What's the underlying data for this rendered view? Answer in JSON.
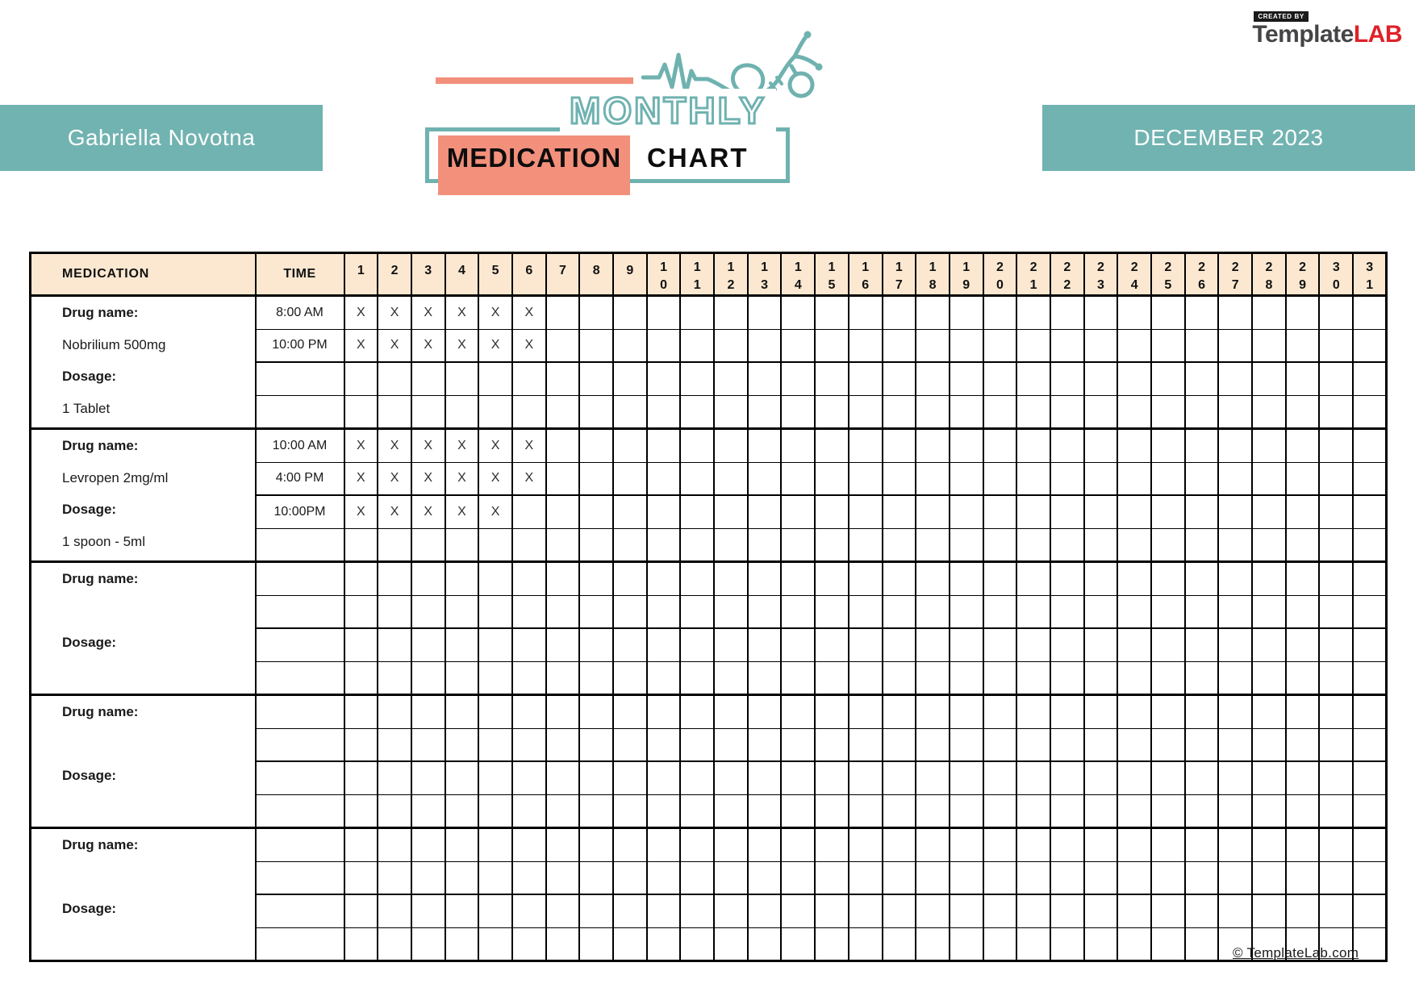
{
  "branding": {
    "created_by": "CREATED BY",
    "brand_template": "Template",
    "brand_lab": "LAB",
    "footer_link": "© TemplateLab.com"
  },
  "header": {
    "patient_name": "Gabriella Novotna",
    "month": "DECEMBER 2023",
    "title_word1": "MONTHLY",
    "title_word2": "MEDICATION",
    "title_word3": "CHART"
  },
  "colors": {
    "teal": "#71b3b1",
    "salmon": "#f2907c",
    "table_header_bg": "#fce8d1",
    "brand_red": "#e02128",
    "brand_gray": "#454547"
  },
  "table": {
    "medication_header": "MEDICATION",
    "time_header": "TIME",
    "mark_symbol": "X",
    "days": [
      1,
      2,
      3,
      4,
      5,
      6,
      7,
      8,
      9,
      10,
      11,
      12,
      13,
      14,
      15,
      16,
      17,
      18,
      19,
      20,
      21,
      22,
      23,
      24,
      25,
      26,
      27,
      28,
      29,
      30,
      31
    ],
    "blocks": [
      {
        "label_lines": [
          {
            "text": "Drug name:",
            "bold": true
          },
          {
            "text": "Nobrilium 500mg",
            "bold": false
          },
          {
            "text": "Dosage:",
            "bold": true
          },
          {
            "text": "1 Tablet",
            "bold": false
          }
        ],
        "rows": [
          {
            "time": "8:00 AM",
            "x_days": [
              1,
              2,
              3,
              4,
              5,
              6
            ]
          },
          {
            "time": "10:00 PM",
            "x_days": [
              1,
              2,
              3,
              4,
              5,
              6
            ]
          },
          {
            "time": "",
            "x_days": []
          },
          {
            "time": "",
            "x_days": []
          }
        ]
      },
      {
        "label_lines": [
          {
            "text": "Drug name:",
            "bold": true
          },
          {
            "text": "Levropen 2mg/ml",
            "bold": false
          },
          {
            "text": "Dosage:",
            "bold": true
          },
          {
            "text": "1 spoon - 5ml",
            "bold": false
          }
        ],
        "rows": [
          {
            "time": "10:00 AM",
            "x_days": [
              1,
              2,
              3,
              4,
              5,
              6
            ]
          },
          {
            "time": "4:00 PM",
            "x_days": [
              1,
              2,
              3,
              4,
              5,
              6
            ]
          },
          {
            "time": "10:00PM",
            "x_days": [
              1,
              2,
              3,
              4,
              5
            ]
          },
          {
            "time": "",
            "x_days": []
          }
        ]
      },
      {
        "label_lines": [
          {
            "text": "Drug name:",
            "bold": true
          },
          {
            "text": "",
            "bold": false
          },
          {
            "text": "Dosage:",
            "bold": true
          },
          {
            "text": "",
            "bold": false
          }
        ],
        "rows": [
          {
            "time": "",
            "x_days": []
          },
          {
            "time": "",
            "x_days": []
          },
          {
            "time": "",
            "x_days": []
          },
          {
            "time": "",
            "x_days": []
          }
        ]
      },
      {
        "label_lines": [
          {
            "text": "Drug name:",
            "bold": true
          },
          {
            "text": "",
            "bold": false
          },
          {
            "text": "Dosage:",
            "bold": true
          },
          {
            "text": "",
            "bold": false
          }
        ],
        "rows": [
          {
            "time": "",
            "x_days": []
          },
          {
            "time": "",
            "x_days": []
          },
          {
            "time": "",
            "x_days": []
          },
          {
            "time": "",
            "x_days": []
          }
        ]
      },
      {
        "label_lines": [
          {
            "text": "Drug name:",
            "bold": true
          },
          {
            "text": "",
            "bold": false
          },
          {
            "text": "Dosage:",
            "bold": true
          },
          {
            "text": "",
            "bold": false
          }
        ],
        "rows": [
          {
            "time": "",
            "x_days": []
          },
          {
            "time": "",
            "x_days": []
          },
          {
            "time": "",
            "x_days": []
          },
          {
            "time": "",
            "x_days": []
          }
        ]
      }
    ]
  }
}
